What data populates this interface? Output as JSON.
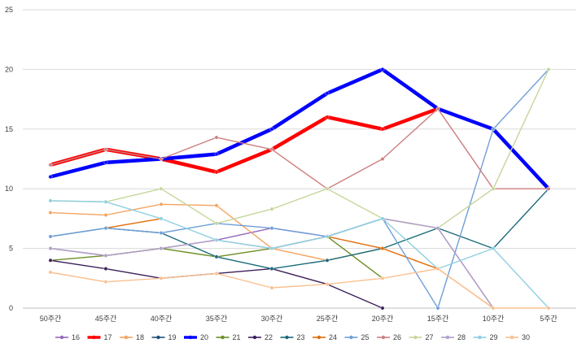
{
  "chart_data": {
    "type": "line",
    "title": "",
    "xlabel": "",
    "ylabel": "",
    "ylim": [
      0,
      25
    ],
    "yticks": [
      0,
      5,
      10,
      15,
      20,
      25
    ],
    "grid": true,
    "legend_position": "bottom",
    "categories": [
      "50주간",
      "45주간",
      "40주간",
      "35주간",
      "30주간",
      "25주간",
      "20주간",
      "15주간",
      "10주간",
      "5주간"
    ],
    "series": [
      {
        "name": "16",
        "color": "#9467bd",
        "width": 1.4,
        "values": [
          5,
          4.4,
          5,
          5.7,
          6.7,
          6,
          7.5,
          6.7,
          0,
          null
        ]
      },
      {
        "name": "17",
        "color": "#ff0000",
        "width": 4.5,
        "values": [
          12,
          13.3,
          12.5,
          11.4,
          13.3,
          16,
          15,
          16.7,
          null,
          null
        ]
      },
      {
        "name": "18",
        "color": "#f4a460",
        "width": 1.4,
        "values": [
          8,
          7.8,
          8.7,
          8.6,
          5,
          4,
          5,
          3.3,
          0,
          null
        ]
      },
      {
        "name": "19",
        "color": "#1f4e79",
        "width": 1.4,
        "values": [
          11,
          12.2,
          12.5,
          12.9,
          15,
          18,
          20,
          16.7,
          15,
          10
        ]
      },
      {
        "name": "20",
        "color": "#0000ff",
        "width": 4.5,
        "values": [
          11,
          12.2,
          12.5,
          12.9,
          15,
          18,
          20,
          16.7,
          15,
          10
        ]
      },
      {
        "name": "21",
        "color": "#6b8e23",
        "width": 1.4,
        "values": [
          4,
          4.4,
          5,
          4.3,
          5,
          6,
          2.5,
          null,
          null,
          null
        ]
      },
      {
        "name": "22",
        "color": "#3c1f5a",
        "width": 1.4,
        "values": [
          4,
          3.3,
          2.5,
          2.9,
          3.3,
          2,
          0,
          null,
          null,
          null
        ]
      },
      {
        "name": "23",
        "color": "#1a6b7a",
        "width": 1.4,
        "values": [
          6,
          6.7,
          6.3,
          4.3,
          3.3,
          4,
          5,
          6.7,
          5,
          10
        ]
      },
      {
        "name": "24",
        "color": "#e36c09",
        "width": 1.4,
        "values": [
          null,
          6.7,
          7.5,
          null,
          null,
          6,
          5,
          3.3,
          null,
          null
        ]
      },
      {
        "name": "25",
        "color": "#6f9fd8",
        "width": 1.4,
        "values": [
          6,
          6.7,
          6.3,
          7.1,
          6.7,
          6,
          7.5,
          0,
          15,
          20
        ]
      },
      {
        "name": "26",
        "color": "#cd7f7f",
        "width": 1.4,
        "values": [
          12,
          13.3,
          12.5,
          14.3,
          13.3,
          10,
          12.5,
          16.7,
          10,
          10
        ]
      },
      {
        "name": "27",
        "color": "#c4d79b",
        "width": 1.4,
        "values": [
          9,
          8.9,
          10,
          7.1,
          8.3,
          10,
          7.5,
          6.7,
          10,
          20
        ]
      },
      {
        "name": "28",
        "color": "#b1a0c7",
        "width": 1.4,
        "values": [
          5,
          4.4,
          5,
          5.7,
          5,
          6,
          7.5,
          6.7,
          0,
          null
        ]
      },
      {
        "name": "29",
        "color": "#8ecfe0",
        "width": 1.4,
        "values": [
          9,
          8.9,
          7.5,
          5.7,
          5,
          6,
          7.5,
          3.3,
          5,
          0
        ]
      },
      {
        "name": "30",
        "color": "#fac090",
        "width": 1.4,
        "values": [
          3,
          2.2,
          2.5,
          2.9,
          1.7,
          2,
          2.5,
          3.3,
          0,
          0
        ]
      }
    ]
  }
}
